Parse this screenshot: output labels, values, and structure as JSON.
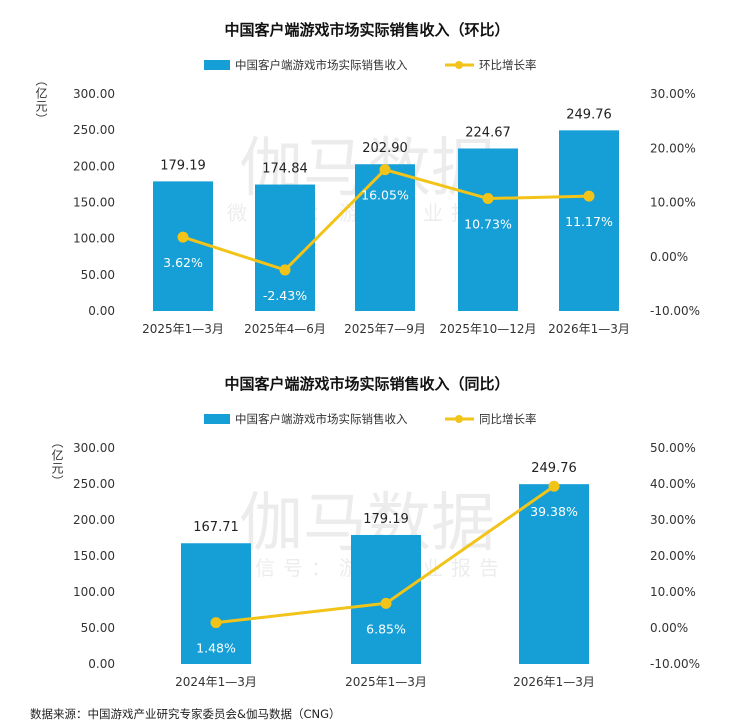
{
  "colors": {
    "bar": "#159fd6",
    "line": "#f2c318"
  },
  "watermark": {
    "logo": "伽马数据",
    "sub": "微信号：游戏产业报告"
  },
  "chart_data": [
    {
      "type": "bar+line",
      "title": "中国客户端游戏市场实际销售收入（环比）",
      "legend": {
        "bar": "中国客户端游戏市场实际销售收入",
        "line": "环比增长率",
        "placement": "top-center"
      },
      "ylabel": "（亿元）",
      "categories": [
        "2025年1—3月",
        "2025年4—6月",
        "2025年7—9月",
        "2025年10—12月",
        "2026年1—3月"
      ],
      "bar_values": [
        179.19,
        174.84,
        202.9,
        224.67,
        249.76
      ],
      "bar_labels": [
        "179.19",
        "174.84",
        "202.90",
        "224.67",
        "249.76"
      ],
      "line_values": [
        3.62,
        -2.43,
        16.05,
        10.73,
        11.17
      ],
      "line_labels": [
        "3.62%",
        "-2.43%",
        "16.05%",
        "10.73%",
        "11.17%"
      ],
      "ylim": [
        0,
        300
      ],
      "y_ticks": [
        "0.00",
        "50.00",
        "100.00",
        "150.00",
        "200.00",
        "250.00",
        "300.00"
      ],
      "y2lim": [
        -10,
        30
      ],
      "y2_ticks": [
        "-10.00%",
        "0.00%",
        "10.00%",
        "20.00%",
        "30.00%"
      ]
    },
    {
      "type": "bar+line",
      "title": "中国客户端游戏市场实际销售收入（同比）",
      "legend": {
        "bar": "中国客户端游戏市场实际销售收入",
        "line": "同比增长率",
        "placement": "top-center"
      },
      "ylabel": "（亿元）",
      "categories": [
        "2024年1—3月",
        "2025年1—3月",
        "2026年1—3月"
      ],
      "bar_values": [
        167.71,
        179.19,
        249.76
      ],
      "bar_labels": [
        "167.71",
        "179.19",
        "249.76"
      ],
      "line_values": [
        1.48,
        6.85,
        39.38
      ],
      "line_labels": [
        "1.48%",
        "6.85%",
        "39.38%"
      ],
      "ylim": [
        0,
        300
      ],
      "y_ticks": [
        "0.00",
        "50.00",
        "100.00",
        "150.00",
        "200.00",
        "250.00",
        "300.00"
      ],
      "y2lim": [
        -10,
        50
      ],
      "y2_ticks": [
        "-10.00%",
        "0.00%",
        "10.00%",
        "20.00%",
        "30.00%",
        "40.00%",
        "50.00%"
      ]
    }
  ],
  "footer": "数据来源：中国游戏产业研究专家委员会&伽马数据（CNG）"
}
